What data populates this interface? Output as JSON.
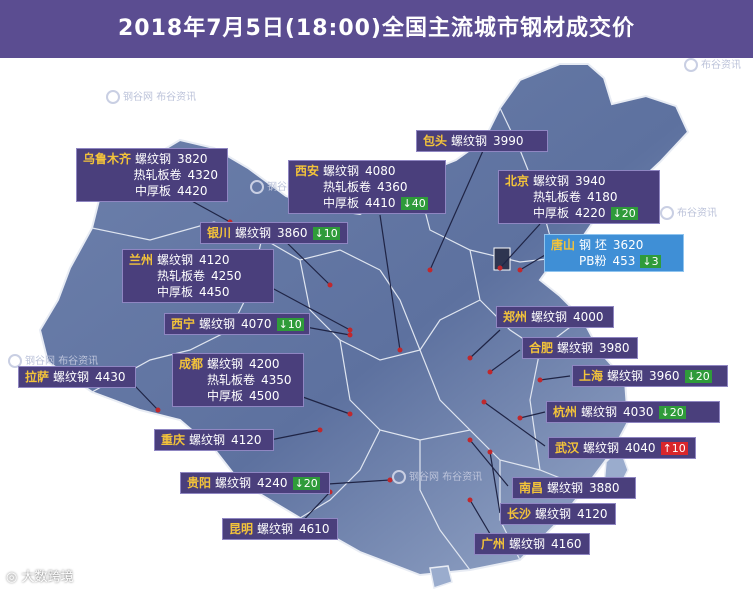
{
  "header": {
    "title": "2018年7月5日(18:00)全国主流城市钢材成交价"
  },
  "colors": {
    "header_bg": "#5b4d91",
    "label_bg": "#4a3f7c",
    "label_highlight": "#3f8fd6",
    "city": "#f3c33a",
    "down": "#2f9b3a",
    "up": "#d9262b"
  },
  "watermark": {
    "brand": "钢谷网",
    "sub": "布谷资讯",
    "footer": "大数跨境"
  },
  "labels": [
    {
      "city": "乌鲁木齐",
      "rows": [
        {
          "product": "螺纹钢",
          "price": "3820"
        },
        {
          "product": "热轧板卷",
          "price": "4320"
        },
        {
          "product": "中厚板",
          "price": "4420"
        }
      ]
    },
    {
      "city": "包头",
      "rows": [
        {
          "product": "螺纹钢",
          "price": "3990"
        }
      ]
    },
    {
      "city": "西安",
      "rows": [
        {
          "product": "螺纹钢",
          "price": "4080"
        },
        {
          "product": "热轧板卷",
          "price": "4360"
        },
        {
          "product": "中厚板",
          "price": "4410",
          "change": "↓40",
          "dir": "down"
        }
      ]
    },
    {
      "city": "北京",
      "rows": [
        {
          "product": "螺纹钢",
          "price": "3940"
        },
        {
          "product": "热轧板卷",
          "price": "4180"
        },
        {
          "product": "中厚板",
          "price": "4220",
          "change": "↓20",
          "dir": "down"
        }
      ]
    },
    {
      "city": "银川",
      "rows": [
        {
          "product": "螺纹钢",
          "price": "3860",
          "change": "↓10",
          "dir": "down"
        }
      ]
    },
    {
      "city": "唐山",
      "rows": [
        {
          "product": "钢 坯",
          "price": "3620"
        },
        {
          "product": "PB粉",
          "price": "453",
          "change": "↓3",
          "dir": "down"
        }
      ]
    },
    {
      "city": "兰州",
      "rows": [
        {
          "product": "螺纹钢",
          "price": "4120"
        },
        {
          "product": "热轧板卷",
          "price": "4250"
        },
        {
          "product": "中厚板",
          "price": "4450"
        }
      ]
    },
    {
      "city": "郑州",
      "rows": [
        {
          "product": "螺纹钢",
          "price": "4000"
        }
      ]
    },
    {
      "city": "西宁",
      "rows": [
        {
          "product": "螺纹钢",
          "price": "4070",
          "change": "↓10",
          "dir": "down"
        }
      ]
    },
    {
      "city": "合肥",
      "rows": [
        {
          "product": "螺纹钢",
          "price": "3980"
        }
      ]
    },
    {
      "city": "成都",
      "rows": [
        {
          "product": "螺纹钢",
          "price": "4200"
        },
        {
          "product": "热轧板卷",
          "price": "4350"
        },
        {
          "product": "中厚板",
          "price": "4500"
        }
      ]
    },
    {
      "city": "拉萨",
      "rows": [
        {
          "product": "螺纹钢",
          "price": "4430"
        }
      ]
    },
    {
      "city": "上海",
      "rows": [
        {
          "product": "螺纹钢",
          "price": "3960",
          "change": "↓20",
          "dir": "down"
        }
      ]
    },
    {
      "city": "杭州",
      "rows": [
        {
          "product": "螺纹钢",
          "price": "4030",
          "change": "↓20",
          "dir": "down"
        }
      ]
    },
    {
      "city": "重庆",
      "rows": [
        {
          "product": "螺纹钢",
          "price": "4120"
        }
      ]
    },
    {
      "city": "武汉",
      "rows": [
        {
          "product": "螺纹钢",
          "price": "4040",
          "change": "↑10",
          "dir": "up"
        }
      ]
    },
    {
      "city": "贵阳",
      "rows": [
        {
          "product": "螺纹钢",
          "price": "4240",
          "change": "↓20",
          "dir": "down"
        }
      ]
    },
    {
      "city": "南昌",
      "rows": [
        {
          "product": "螺纹钢",
          "price": "3880"
        }
      ]
    },
    {
      "city": "长沙",
      "rows": [
        {
          "product": "螺纹钢",
          "price": "4120"
        }
      ]
    },
    {
      "city": "昆明",
      "rows": [
        {
          "product": "螺纹钢",
          "price": "4610"
        }
      ]
    },
    {
      "city": "广州",
      "rows": [
        {
          "product": "螺纹钢",
          "price": "4160"
        }
      ]
    }
  ]
}
